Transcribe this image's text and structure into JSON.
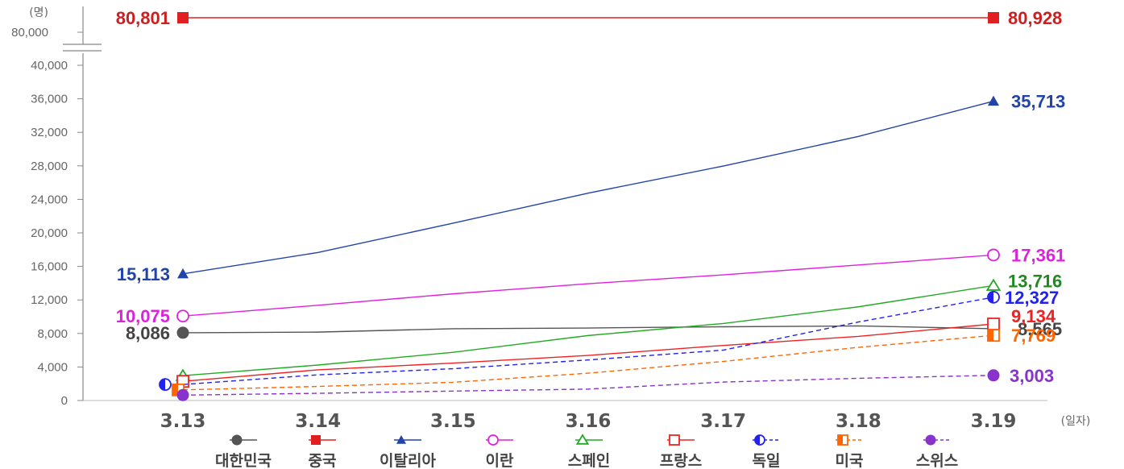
{
  "chart_data": {
    "type": "line",
    "y_unit": "(명)",
    "x_unit": "(일자)",
    "categories": [
      "3.13",
      "3.14",
      "3.15",
      "3.16",
      "3.17",
      "3.18",
      "3.19"
    ],
    "ylim": [
      0,
      40000
    ],
    "yticks": [
      "0",
      "4,000",
      "8,000",
      "12,000",
      "16,000",
      "20,000",
      "24,000",
      "28,000",
      "32,000",
      "36,000",
      "40,000"
    ],
    "ybreak_tick": "80,000",
    "grid": false,
    "legend_position": "bottom",
    "series": [
      {
        "name": "대한민국",
        "color": "#555555",
        "marker": "filled-circle",
        "dash": false,
        "values": [
          8086,
          8162,
          8565,
          8652,
          8799,
          8897,
          8565
        ],
        "labels": {
          "0": "8,086",
          "6": "8,565"
        }
      },
      {
        "name": "중국",
        "color": "#e02020",
        "marker": "filled-square",
        "dash": false,
        "broken_axis": true,
        "values": [
          80801,
          80815,
          80844,
          80860,
          80881,
          80894,
          80928
        ],
        "labels": {
          "0": "80,801",
          "6": "80,928"
        }
      },
      {
        "name": "이탈리아",
        "color": "#2244aa",
        "marker": "filled-triangle",
        "dash": false,
        "values": [
          15113,
          17660,
          21157,
          24747,
          27980,
          31506,
          35713
        ],
        "labels": {
          "0": "15,113",
          "6": "35,713"
        }
      },
      {
        "name": "이란",
        "color": "#e020e0",
        "marker": "open-circle",
        "dash": false,
        "values": [
          10075,
          11364,
          12729,
          13938,
          14991,
          16169,
          17361
        ],
        "labels": {
          "0": "10,075",
          "6": "17,361"
        }
      },
      {
        "name": "스페인",
        "color": "#22aa22",
        "marker": "open-triangle",
        "dash": false,
        "values": [
          2965,
          4231,
          5753,
          7753,
          9191,
          11178,
          13716
        ],
        "labels": {
          "6": "13,716"
        }
      },
      {
        "name": "프랑스",
        "color": "#ee2222",
        "marker": "open-square",
        "dash": false,
        "values": [
          2284,
          3661,
          4469,
          5380,
          6573,
          7652,
          9134
        ],
        "labels": {
          "6": "9,134"
        }
      },
      {
        "name": "독일",
        "color": "#2222ee",
        "marker": "half-circle",
        "dash": true,
        "values": [
          1908,
          3062,
          3795,
          4838,
          6012,
          9367,
          12327
        ],
        "labels": {
          "6": "12,327"
        }
      },
      {
        "name": "미국",
        "color": "#ff6600",
        "marker": "half-square",
        "dash": true,
        "values": [
          1264,
          1678,
          2174,
          3261,
          4661,
          6344,
          7769
        ],
        "labels": {
          "6": "7,769"
        }
      },
      {
        "name": "스위스",
        "color": "#8833cc",
        "marker": "filled-circle",
        "dash": true,
        "values": [
          645,
          858,
          1125,
          1359,
          2200,
          2650,
          3003
        ],
        "labels": {
          "6": "3,003"
        }
      }
    ]
  }
}
